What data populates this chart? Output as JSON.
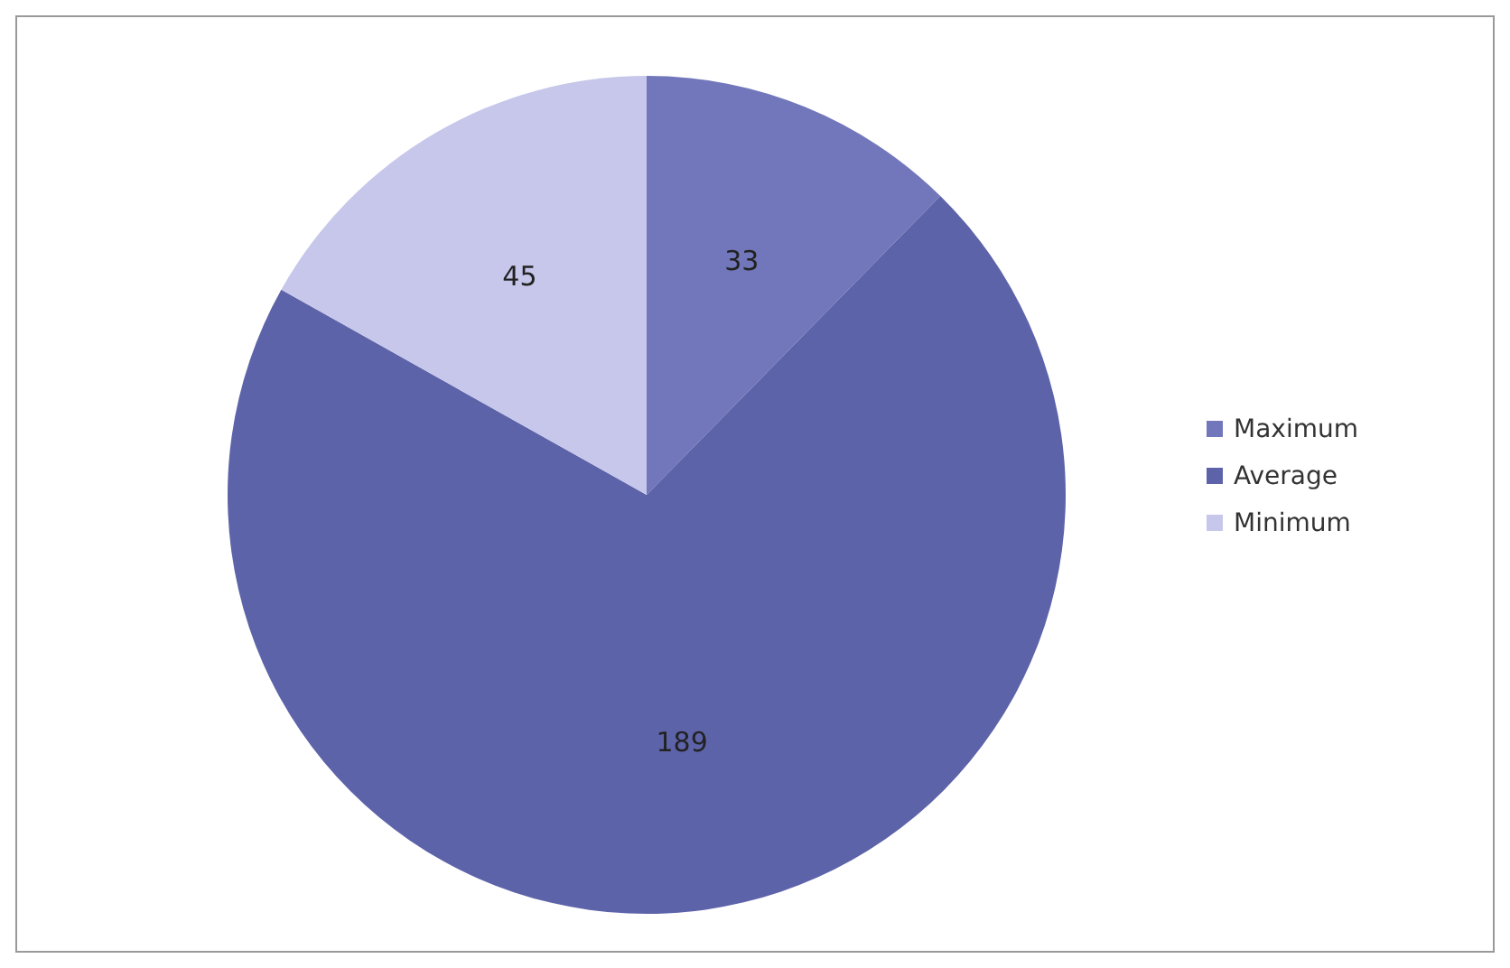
{
  "chart_data": {
    "type": "pie",
    "categories": [
      "Maximum",
      "Average",
      "Minimum"
    ],
    "values": [
      33,
      189,
      45
    ],
    "colors": [
      "#7177ba",
      "#5d63a9",
      "#c6c7ea"
    ],
    "data_labels": true,
    "legend": "right"
  }
}
